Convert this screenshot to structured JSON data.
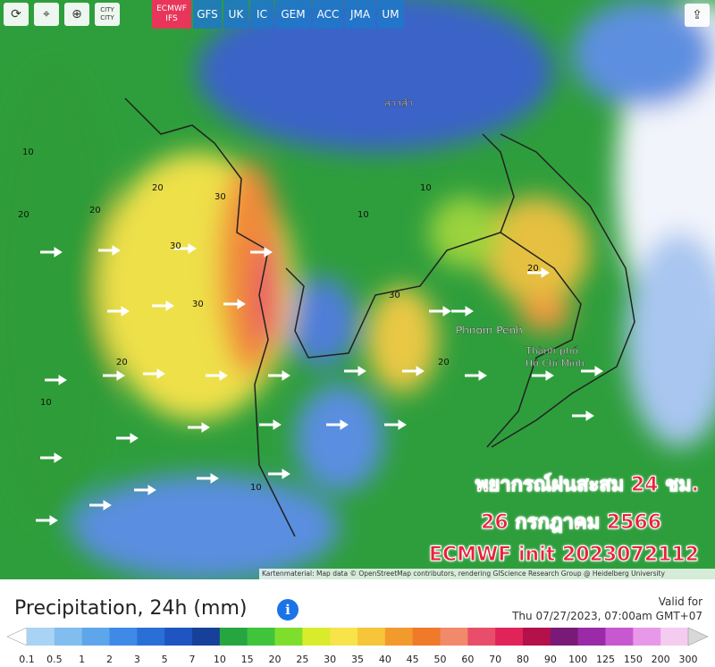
{
  "toolbar": {
    "active_model": {
      "line1": "ECMWF",
      "line2": "IFS"
    },
    "city_button": {
      "line1": "CITY",
      "line2": "CITY"
    },
    "models": [
      "GFS",
      "UK",
      "IC",
      "GEM",
      "ACC",
      "JMA",
      "UM"
    ]
  },
  "map": {
    "places": [
      "Phnom Penh",
      "Thành phố",
      "Hồ Chí Minh",
      "ลาวสำ"
    ],
    "contours": [
      "10",
      "20",
      "30",
      "30",
      "20",
      "10",
      "20",
      "30",
      "10",
      "20",
      "10",
      "20",
      "30",
      "10",
      "10",
      "20"
    ],
    "overlay": [
      "พยากรณ์ฝนสะสม 24 ชม.",
      "26 กรกฎาคม 2566",
      "ECMWF init 2023072112"
    ],
    "attribution": "Kartenmaterial: Map data © OpenStreetMap contributors, rendering GIScience Research Group @ Heidelberg University"
  },
  "legend": {
    "title": "Precipitation, 24h (mm)",
    "valid_label": "Valid for",
    "valid_time": "Thu 07/27/2023, 07:00am GMT+07",
    "scale": {
      "labels": [
        "0.1",
        "0.5",
        "1",
        "2",
        "3",
        "5",
        "7",
        "10",
        "15",
        "20",
        "25",
        "30",
        "35",
        "40",
        "45",
        "50",
        "60",
        "70",
        "80",
        "90",
        "100",
        "125",
        "150",
        "200",
        "300"
      ],
      "colors": [
        "#ffffff",
        "#a9d3f5",
        "#82bdf0",
        "#5ea6ec",
        "#3f8ae6",
        "#2a6fd6",
        "#1e55c0",
        "#17409a",
        "#26a641",
        "#3fc43c",
        "#7ede2e",
        "#d8ec2c",
        "#f7e34a",
        "#f6c53a",
        "#f39a2c",
        "#ee7a2a",
        "#f08a6a",
        "#e84e6a",
        "#e0245a",
        "#b4104a",
        "#7a1a78",
        "#9a2aa8",
        "#c858d0",
        "#e898e8",
        "#f4ccf0",
        "#d8d8d8"
      ]
    }
  }
}
